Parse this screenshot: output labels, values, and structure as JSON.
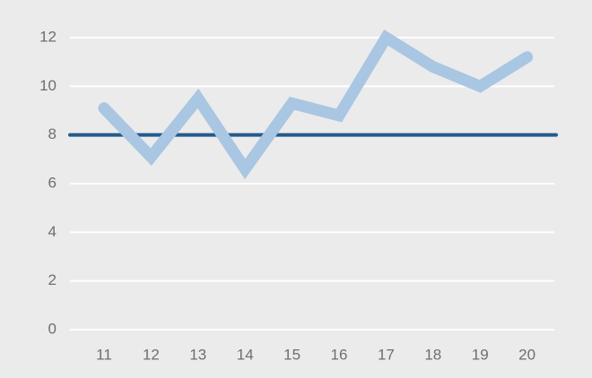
{
  "chart_data": {
    "type": "line",
    "title": "",
    "xlabel": "",
    "ylabel": "",
    "categories": [
      "11",
      "12",
      "13",
      "14",
      "15",
      "16",
      "17",
      "18",
      "19",
      "20"
    ],
    "series": [
      {
        "name": "",
        "values": [
          9.1,
          7.1,
          9.5,
          6.6,
          9.3,
          8.8,
          12.0,
          10.8,
          10.0,
          11.2
        ],
        "color": "#a9c6e2"
      }
    ],
    "reference_line": {
      "value": 8,
      "color": "#235b8c"
    },
    "yticks": [
      "0",
      "2",
      "4",
      "6",
      "8",
      "10",
      "12"
    ],
    "ytick_values": [
      0,
      2,
      4,
      6,
      8,
      10,
      12
    ],
    "ylim": [
      0,
      12
    ],
    "grid": true,
    "grid_color": "#ffffff",
    "background_color": "#ebebeb",
    "legend": "none"
  }
}
